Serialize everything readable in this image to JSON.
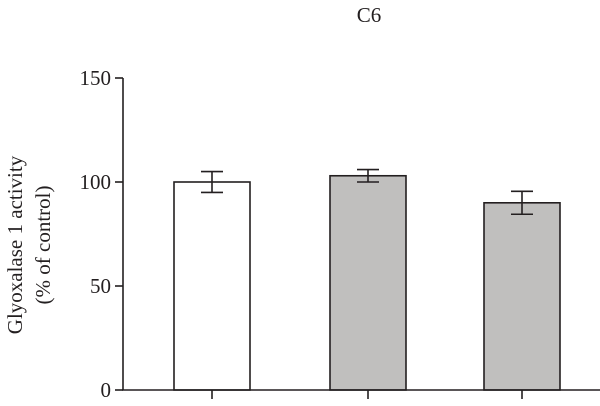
{
  "chart_data": {
    "type": "bar",
    "title": "C6",
    "ylabel_line1": "Glyoxalase 1 activity",
    "ylabel_line2": "(% of control)",
    "ylim": [
      0,
      150
    ],
    "yticks": [
      "0",
      "50",
      "100",
      "150"
    ],
    "bars": [
      {
        "value": 100,
        "error": 5,
        "fill": "#ffffff"
      },
      {
        "value": 103,
        "error": 3,
        "fill": "#c0bfbe"
      },
      {
        "value": 90,
        "error": 5.5,
        "fill": "#c0bfbe"
      }
    ],
    "colors": {
      "axis": "#231f20",
      "bar_stroke": "#231f20"
    }
  }
}
